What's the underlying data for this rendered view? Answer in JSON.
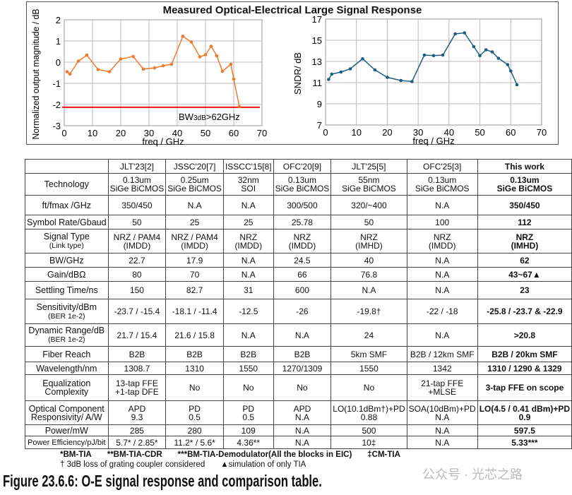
{
  "figure_title": "Measured Optical-Electrical Large Signal Response",
  "chart_data": [
    {
      "type": "line",
      "xlabel": "freq / GHz",
      "ylabel": "Normalized output magnitude / dB",
      "xlim": [
        0,
        70
      ],
      "ylim": [
        -3,
        2
      ],
      "xticks": [
        0,
        10,
        20,
        30,
        40,
        50,
        60,
        70
      ],
      "yticks": [
        -3,
        -2,
        -1,
        0,
        1,
        2
      ],
      "grid": true,
      "color": "#f07a2a",
      "x": [
        1,
        2,
        5,
        8,
        12,
        16,
        20,
        24.4,
        28,
        32,
        35,
        38,
        42,
        45,
        48,
        50,
        52,
        54,
        56,
        59,
        60,
        62
      ],
      "y": [
        -0.45,
        -0.56,
        0.05,
        0.33,
        -0.35,
        -0.45,
        0.15,
        0.27,
        -0.33,
        -0.27,
        -0.17,
        -0.1,
        1.22,
        0.95,
        0.25,
        0.35,
        0.75,
        0.3,
        -0.43,
        -0.1,
        -0.8,
        -2.1
      ],
      "reference_line": {
        "y": -2.13,
        "color": "#ee1111",
        "label_main": "BW",
        "label_sub": "3dB",
        "label_rest": ">62GHz"
      }
    },
    {
      "type": "line",
      "xlabel": "freq / GHz",
      "ylabel": "SNDR/ dB",
      "xlim": [
        0,
        70
      ],
      "ylim": [
        7,
        17
      ],
      "xticks": [
        0,
        10,
        20,
        30,
        40,
        50,
        60,
        70
      ],
      "yticks": [
        7,
        9,
        11,
        13,
        15,
        17
      ],
      "grid": true,
      "color": "#1b5f80",
      "x": [
        1,
        2,
        5,
        8,
        12,
        16,
        20,
        24.4,
        28,
        32,
        35,
        38,
        42,
        45,
        48,
        50,
        52,
        54,
        56,
        59,
        60,
        62
      ],
      "y": [
        11.3,
        11.8,
        12.0,
        12.3,
        13.25,
        12.2,
        11.5,
        11.2,
        11.1,
        13.6,
        13.55,
        13.6,
        15.6,
        15.7,
        14.4,
        13.55,
        14.1,
        13.9,
        13.3,
        12.7,
        12.1,
        10.8
      ]
    }
  ],
  "table": {
    "headers": [
      "",
      "JLT'23[2]",
      "JSSC'20[7]",
      "ISSCC'15[8]",
      "OFC'20[9]",
      "JLT'25[5]",
      "OFC'25[3]",
      "This work"
    ],
    "rows": [
      {
        "label": "Technology",
        "sub": "",
        "cells": [
          "0.13um\nSiGe BiCMOS",
          "0.25um\nSiGe BiCMOS",
          "32nm\nSOI",
          "0.13um\nSiGe BiCMOS",
          "55nm\nSiGe BiCMOS",
          "0.13um\nSiGe BiCMOS",
          "0.13um\nSiGe BiCMOS"
        ]
      },
      {
        "label": "ft/fmax /GHz",
        "sub": "",
        "cells": [
          "350/450",
          "N.A",
          "N.A",
          "300/500",
          "320/~400",
          "N.A",
          "350/450"
        ]
      },
      {
        "label": "Symbol Rate/Gbaud",
        "sub": "",
        "cells": [
          "50",
          "25",
          "25",
          "25.78",
          "50",
          "100",
          "112"
        ]
      },
      {
        "label": "Signal Type",
        "sub": "(Link type)",
        "cells": [
          "NRZ / PAM4\n(IMDD)",
          "NRZ / PAM4\n(IMDD)",
          "NRZ\n(IMDD)",
          "NRZ\n(IMDD)",
          "NRZ\n(IMHD)",
          "NRZ\n(IMDD)",
          "NRZ\n(IMHD)"
        ]
      },
      {
        "label": "BW/GHz",
        "sub": "",
        "cells": [
          "22.7",
          "17.9",
          "N.A",
          "24.5",
          "40",
          "N.A",
          "62"
        ]
      },
      {
        "label": "Gain/dBΩ",
        "sub": "",
        "cells": [
          "80",
          "70",
          "N.A",
          "66",
          "76.8",
          "N.A",
          "43~67▲"
        ]
      },
      {
        "label": "Settling Time/ns",
        "sub": "",
        "cells": [
          "150",
          "82.7",
          "31",
          "600",
          "N.A",
          "N.A",
          "23"
        ]
      },
      {
        "label": "Sensitivity/dBm",
        "sub": "(BER 1e-2)",
        "cells": [
          "-23.7 / -15.4",
          "-18.1 / -11.4",
          "-12.5",
          "-26",
          "-19.8†",
          "-22 / -18",
          "-25.8 / -23.7 & -22.9"
        ]
      },
      {
        "label": "Dynamic Range/dB",
        "sub": "(BER 1e-2)",
        "cells": [
          "21.7 / 15.4",
          "21.6 / 15.8",
          "N.A",
          "N.A",
          "24",
          "N.A",
          ">20.8"
        ]
      },
      {
        "label": "Fiber Reach",
        "sub": "",
        "cells": [
          "B2B",
          "B2B",
          "B2B",
          "B2B",
          "5km SMF",
          "B2B / 12km SMF",
          "B2B / 20km SMF"
        ]
      },
      {
        "label": "Wavelength/nm",
        "sub": "",
        "cells": [
          "1308.7",
          "1310",
          "1550",
          "1270/1309",
          "1550",
          "1342",
          "1310 / 1290 & 1329"
        ]
      },
      {
        "label": "Equalization\nComplexity",
        "sub": "",
        "cells": [
          "13-tap FFE\n+1-tap DFE",
          "No",
          "No",
          "No",
          "No",
          "21-tap FFE\n+MLSE",
          "3-tap FFE on scope"
        ]
      },
      {
        "label": "Optical Component\nResponsivity/ A/W",
        "sub": "",
        "cells": [
          "APD\n9.3",
          "PD\n0.5",
          "PD\n0.5",
          "APD\nN.A",
          "LO(10.1dBm†)+PD\n0.88",
          "SOA(10dBm)+PD\nN.A",
          "LO(4.5 / 0.41 dBm)+PD\n0.9"
        ]
      },
      {
        "label": "Power/mW",
        "sub": "",
        "cells": [
          "285",
          "280",
          "109",
          "N.A",
          "500",
          "N.A",
          "597.5"
        ]
      },
      {
        "label": "Power Efficiency/pJ/bit",
        "sub": "",
        "cells": [
          "5.7* / 2.85*",
          "11.2* / 5.6*",
          "4.36**",
          "N.A",
          "10‡",
          "N.A",
          "5.33***"
        ]
      }
    ]
  },
  "footnotes": {
    "line1": [
      "*BM-TIA",
      "**BM-TIA-CDR",
      "***BM-TIA-Demodulator(All the blocks in EIC)",
      "‡CM-TIA"
    ],
    "line2": [
      "† 3dB loss of grating coupler considered",
      "▲simulation of only TIA"
    ]
  },
  "caption": "Figure 23.6.6: O-E signal response and comparison table.",
  "watermark": "公众号 · 光芯之路"
}
